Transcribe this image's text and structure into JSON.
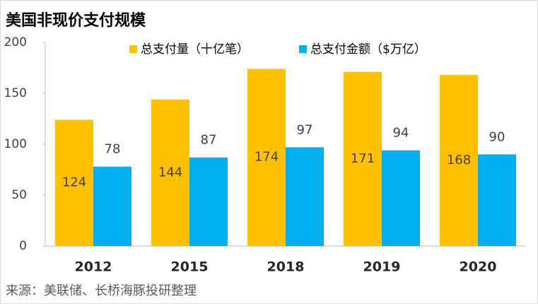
{
  "chart_data": {
    "type": "bar",
    "title": "美国非现价支付规模",
    "source": "来源：美联储、长桥海豚投研整理",
    "categories": [
      "2012",
      "2015",
      "2018",
      "2019",
      "2020"
    ],
    "series": [
      {
        "name": "总支付量（十亿笔）",
        "color": "#FFC000",
        "values": [
          124,
          144,
          174,
          171,
          168
        ]
      },
      {
        "name": "总支付金额（$万亿）",
        "color": "#00B0F0",
        "values": [
          78,
          87,
          97,
          94,
          90
        ]
      }
    ],
    "ylim": [
      0,
      200
    ],
    "yticks": [
      0,
      50,
      100,
      150,
      200
    ],
    "grid": false,
    "legend": "top"
  }
}
